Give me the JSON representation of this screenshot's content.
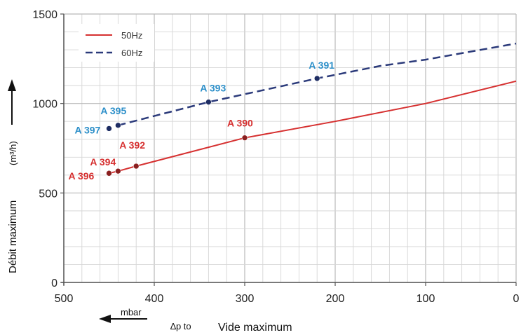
{
  "chart_data": {
    "type": "line",
    "xlim": [
      500,
      0
    ],
    "ylim": [
      0,
      1500
    ],
    "x_ticks": [
      "500",
      "400",
      "300",
      "200",
      "100",
      "0"
    ],
    "y_ticks": [
      "0",
      "500",
      "1000",
      "1500"
    ],
    "grid": true,
    "legend_position": "top-left",
    "ylabel": "Débit maximum",
    "ylabel_unit": "(m³/h)",
    "xlabel_unit": "mbar",
    "xlabel_symbol": "∆p to",
    "xlabel": "Vide maximum",
    "series": [
      {
        "name": "50Hz",
        "color": "#d63030",
        "dash": "solid",
        "curve": [
          [
            450,
            610
          ],
          [
            440,
            622
          ],
          [
            420,
            650
          ],
          [
            300,
            808
          ],
          [
            200,
            900
          ],
          [
            100,
            1000
          ],
          [
            0,
            1125
          ]
        ],
        "points": [
          {
            "label": "A 396",
            "x": 450,
            "y": 610
          },
          {
            "label": "A 394",
            "x": 440,
            "y": 622
          },
          {
            "label": "A 392",
            "x": 420,
            "y": 650
          },
          {
            "label": "A 390",
            "x": 300,
            "y": 808
          }
        ]
      },
      {
        "name": "60Hz",
        "color": "#2b3a7a",
        "dash": "dashed",
        "curve": [
          [
            440,
            878
          ],
          [
            340,
            1008
          ],
          [
            220,
            1140
          ],
          [
            150,
            1210
          ],
          [
            100,
            1245
          ],
          [
            0,
            1335
          ]
        ],
        "points": [
          {
            "label": "A 397",
            "x": 450,
            "y": 860
          },
          {
            "label": "A 395",
            "x": 440,
            "y": 878
          },
          {
            "label": "A 393",
            "x": 340,
            "y": 1008
          },
          {
            "label": "A 391",
            "x": 220,
            "y": 1140
          }
        ]
      }
    ],
    "label_color_60hz": "#2c8fc9"
  }
}
